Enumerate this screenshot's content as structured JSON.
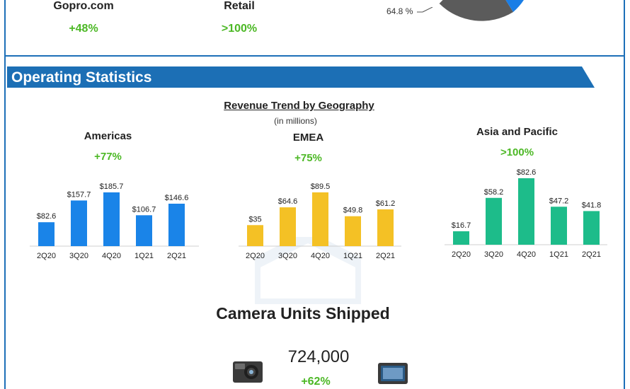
{
  "channels": [
    {
      "name": "Gopro.com",
      "growth": "+48%"
    },
    {
      "name": "Retail",
      "growth": ">100%"
    }
  ],
  "pie": {
    "label": "64.8 %",
    "colors": {
      "main": "#5b5b5b",
      "accent": "#1a7ee6"
    }
  },
  "banner": {
    "title": "Operating Statistics",
    "color": "#1c6fb5"
  },
  "revenue_section": {
    "title": "Revenue Trend by Geography",
    "subtitle": "(in millions)"
  },
  "regions": [
    {
      "name": "Americas",
      "growth": "+77%",
      "color": "#1a84e8"
    },
    {
      "name": "EMEA",
      "growth": "+75%",
      "color": "#f4c125"
    },
    {
      "name": "Asia and Pacific",
      "growth": ">100%",
      "color": "#1dbc8a"
    }
  ],
  "chart_data": [
    {
      "type": "bar",
      "title": "Americas",
      "categories": [
        "2Q20",
        "3Q20",
        "4Q20",
        "1Q21",
        "2Q21"
      ],
      "values": [
        82.6,
        157.7,
        185.7,
        106.7,
        146.6
      ],
      "labels": [
        "$82.6",
        "$157.7",
        "$185.7",
        "$106.7",
        "$146.6"
      ],
      "color": "#1a84e8"
    },
    {
      "type": "bar",
      "title": "EMEA",
      "categories": [
        "2Q20",
        "3Q20",
        "4Q20",
        "1Q21",
        "2Q21"
      ],
      "values": [
        35,
        64.6,
        89.5,
        49.8,
        61.2
      ],
      "labels": [
        "$35",
        "$64.6",
        "$89.5",
        "$49.8",
        "$61.2"
      ],
      "color": "#f4c125"
    },
    {
      "type": "bar",
      "title": "Asia and Pacific",
      "categories": [
        "2Q20",
        "3Q20",
        "4Q20",
        "1Q21",
        "2Q21"
      ],
      "values": [
        16.7,
        58.2,
        82.6,
        47.2,
        41.8
      ],
      "labels": [
        "$16.7",
        "$58.2",
        "$82.6",
        "$47.2",
        "$41.8"
      ],
      "color": "#1dbc8a"
    }
  ],
  "units": {
    "title": "Camera Units Shipped",
    "value": "724,000",
    "growth": "+62%"
  }
}
